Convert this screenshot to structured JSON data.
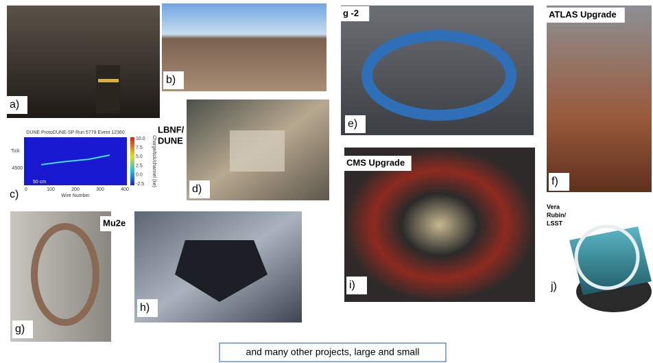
{
  "panels": [
    {
      "label": "a)"
    },
    {
      "label": "b)"
    },
    {
      "label": "c)",
      "plot": {
        "title": "DUNE ProtoDUNE-SP Run 5779 Event 12360",
        "x_label": "Wire Number",
        "xticks": [
          0,
          100,
          200,
          300,
          400
        ],
        "y_label": "Tick",
        "yticks": [
          4500
        ],
        "colorbar_label": "Charge/tick/channel (ke)",
        "colorbar_ticks": [
          "10.0",
          "7.5",
          "5.0",
          "2.5",
          "0.0",
          "-2.5"
        ],
        "scale_label": "50 cm"
      }
    },
    {
      "label": "d)",
      "title": [
        "LBNF/",
        "DUNE"
      ]
    },
    {
      "label": "e)",
      "title": [
        "g -2"
      ]
    },
    {
      "label": "f)",
      "title": [
        "ATLAS Upgrade"
      ]
    },
    {
      "label": "g)",
      "title": [
        "Mu2e"
      ]
    },
    {
      "label": "h)"
    },
    {
      "label": "i)",
      "title": [
        "CMS Upgrade"
      ]
    },
    {
      "label": "j)",
      "title": [
        "Vera",
        "Rubin/",
        "LSST"
      ]
    }
  ],
  "caption": "and many other projects, large and small"
}
